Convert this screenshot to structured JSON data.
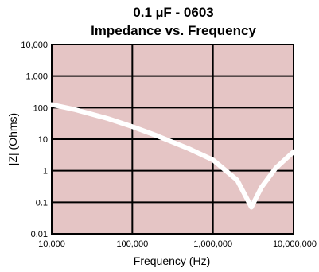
{
  "chart_data": {
    "type": "line",
    "title": "0.1 µF - 0603",
    "subtitle": "Impedance vs. Frequency",
    "xlabel": "Frequency (Hz)",
    "ylabel": "|Z| (Ohms)",
    "x_scale": "log",
    "y_scale": "log",
    "xlim": [
      10000,
      10000000
    ],
    "ylim": [
      0.01,
      10000
    ],
    "x_ticks": [
      10000,
      100000,
      1000000,
      10000000
    ],
    "x_tick_labels": [
      "10,000",
      "100,000",
      "1,000,000",
      "10,000,000"
    ],
    "y_ticks": [
      0.01,
      0.1,
      1,
      10,
      100,
      1000,
      10000
    ],
    "y_tick_labels": [
      "0.01",
      "0.1",
      "1",
      "10",
      "100",
      "1,000",
      "10,000"
    ],
    "grid": true,
    "series": [
      {
        "x": [
          10000,
          20000,
          50000,
          100000,
          200000,
          500000,
          1000000,
          2000000,
          3000000,
          4000000,
          6000000,
          10000000
        ],
        "y": [
          125,
          85,
          45,
          25,
          13,
          5,
          2.2,
          0.5,
          0.07,
          0.3,
          1.2,
          4
        ]
      }
    ],
    "colors": {
      "plot_background": "#e5c5c5",
      "grid_line": "#000000",
      "series_line": "#ffffff",
      "axis_frame": "#000000"
    }
  }
}
